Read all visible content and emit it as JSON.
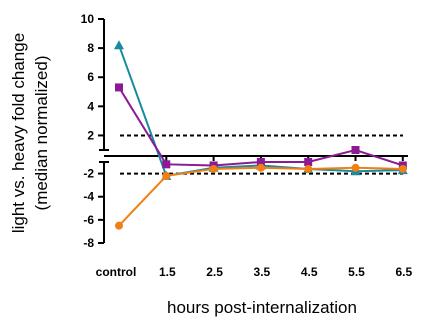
{
  "chart_data": {
    "type": "line",
    "x_categories": [
      "control",
      "1.5",
      "2.5",
      "3.5",
      "4.5",
      "5.5",
      "6.5"
    ],
    "xlabel": "hours post-internalization",
    "ylabel_line1": "light vs. heavy fold change",
    "ylabel_line2": "(median normalized)",
    "y_axis_upper_segment": {
      "ylim": [
        1,
        10
      ],
      "ticks": [
        2,
        4,
        6,
        8,
        10
      ],
      "tick_labels": [
        "2",
        "4",
        "6",
        "8",
        "10"
      ]
    },
    "y_axis_lower_segment": {
      "ylim": [
        -8,
        -1
      ],
      "ticks": [
        -2,
        -4,
        -6,
        -8
      ],
      "tick_labels": [
        "-2",
        "-4",
        "-6",
        "-8"
      ]
    },
    "axis_break": true,
    "reference_lines": [
      2,
      -2
    ],
    "grid": false,
    "legend": "none",
    "series": [
      {
        "color": "#1a8a9e",
        "marker": "triangle",
        "values": [
          8.2,
          -2.2,
          -1.5,
          -1.3,
          -1.6,
          -1.8,
          -1.7
        ]
      },
      {
        "color": "#8b1a94",
        "marker": "square",
        "values": [
          5.3,
          -1.2,
          -1.3,
          -1.0,
          -1.0,
          1.0,
          -1.3
        ]
      },
      {
        "color": "#f07f14",
        "marker": "circle",
        "values": [
          -6.5,
          -2.2,
          -1.6,
          -1.5,
          -1.6,
          -1.5,
          -1.6
        ]
      }
    ]
  }
}
